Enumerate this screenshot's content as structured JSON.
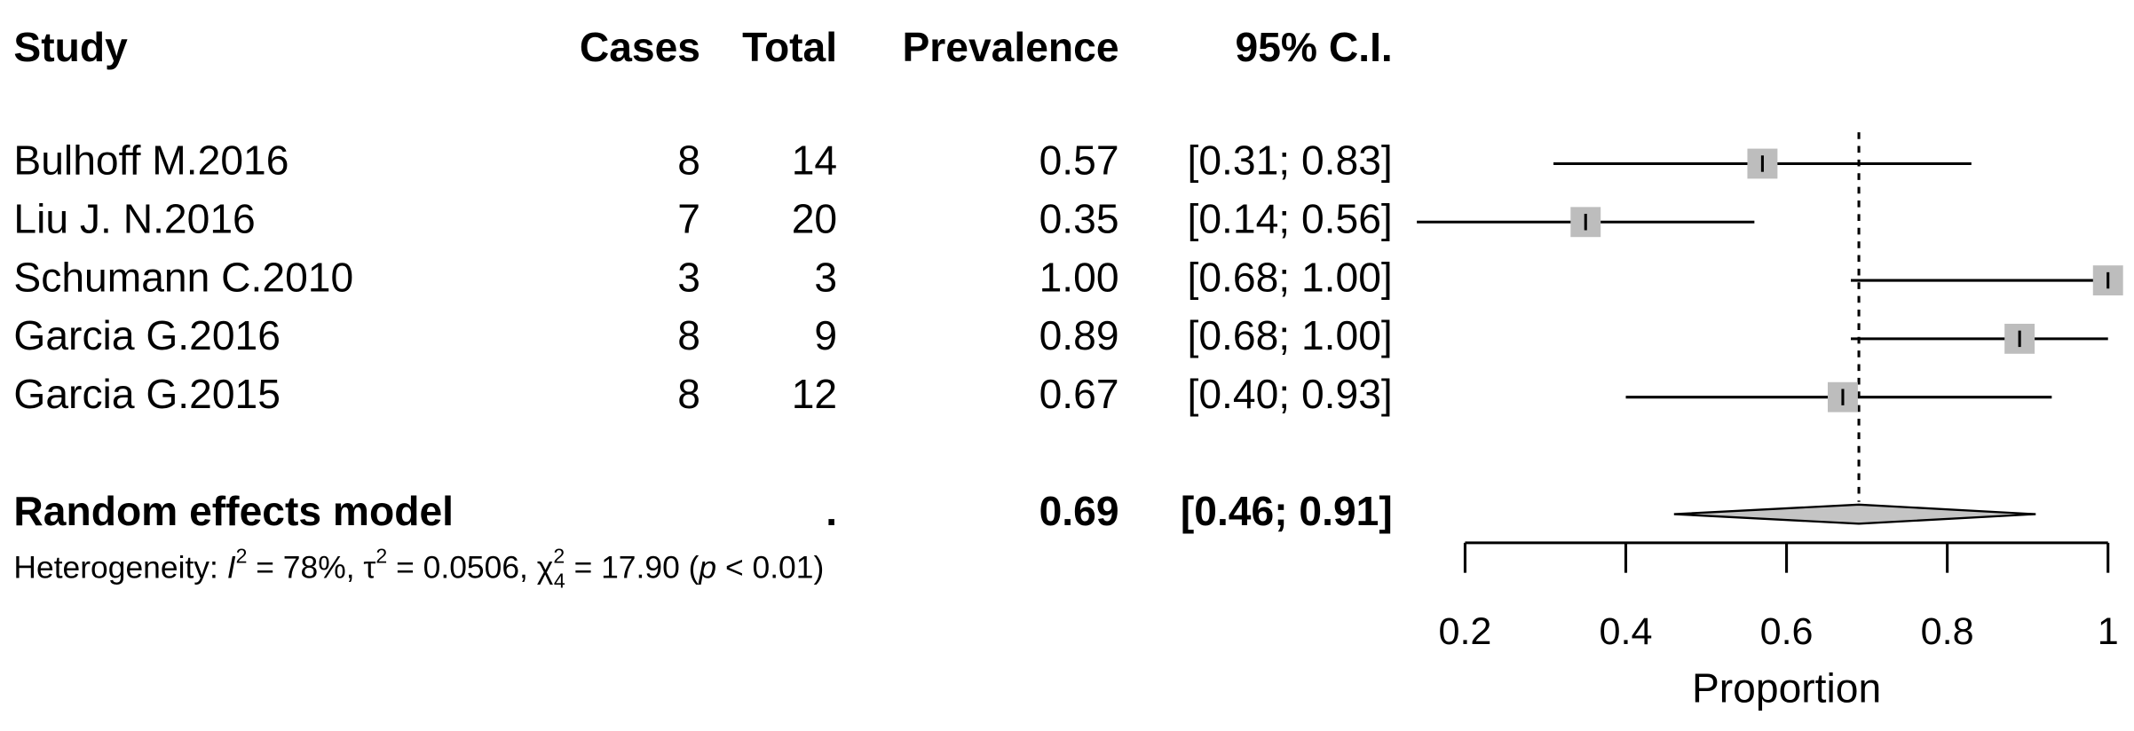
{
  "chart_data": {
    "type": "forest",
    "headers": {
      "study": "Study",
      "cases": "Cases",
      "total": "Total",
      "prevalence": "Prevalence",
      "ci": "95% C.I."
    },
    "categories": [
      "Bulhoff M.2016",
      "Liu J. N.2016",
      "Schumann C.2010",
      "Garcia G.2016",
      "Garcia G.2015"
    ],
    "cases": [
      8,
      7,
      3,
      8,
      8
    ],
    "totals": [
      14,
      20,
      3,
      9,
      12
    ],
    "values": [
      0.57,
      0.35,
      1,
      0.89,
      0.67
    ],
    "value_labels": [
      "0.57",
      "0.35",
      "1.00",
      "0.89",
      "0.67"
    ],
    "ci_lower": [
      0.31,
      0.14,
      0.68,
      0.68,
      0.4
    ],
    "ci_upper": [
      0.83,
      0.56,
      1,
      1,
      0.93
    ],
    "ci_labels": [
      "[0.31; 0.83]",
      "[0.14; 0.56]",
      "[0.68; 1.00]",
      "[0.68; 1.00]",
      "[0.40; 0.93]"
    ],
    "summary": {
      "name": "Random effects model",
      "total_label": ".",
      "value": 0.69,
      "ci_lower": 0.46,
      "ci_upper": 0.91,
      "ci_label": "[0.46; 0.91]"
    },
    "heterogeneity": [
      {
        "text": "Heterogeneity: ",
        "style": "normal"
      },
      {
        "text": "I",
        "style": "italic"
      },
      {
        "text": "2",
        "style": "sup"
      },
      {
        "text": " = 78%, τ",
        "style": "normal"
      },
      {
        "text": "2",
        "style": "sup"
      },
      {
        "text": " = 0.0506, χ",
        "style": "normal"
      },
      {
        "text": "2",
        "style": "sup"
      },
      {
        "text": "4",
        "style": "sub"
      },
      {
        "text": " = 17.90 (",
        "style": "normal"
      },
      {
        "text": "p",
        "style": "italic"
      },
      {
        "text": " < 0.01)",
        "style": "normal"
      }
    ],
    "xlabel": "Proportion",
    "xlim": [
      0.2,
      1
    ],
    "xticks": [
      0.2,
      0.4,
      0.6,
      0.8,
      1
    ],
    "marker_color": "#bdbdbd",
    "diamond_color": "#c4c4c4"
  }
}
